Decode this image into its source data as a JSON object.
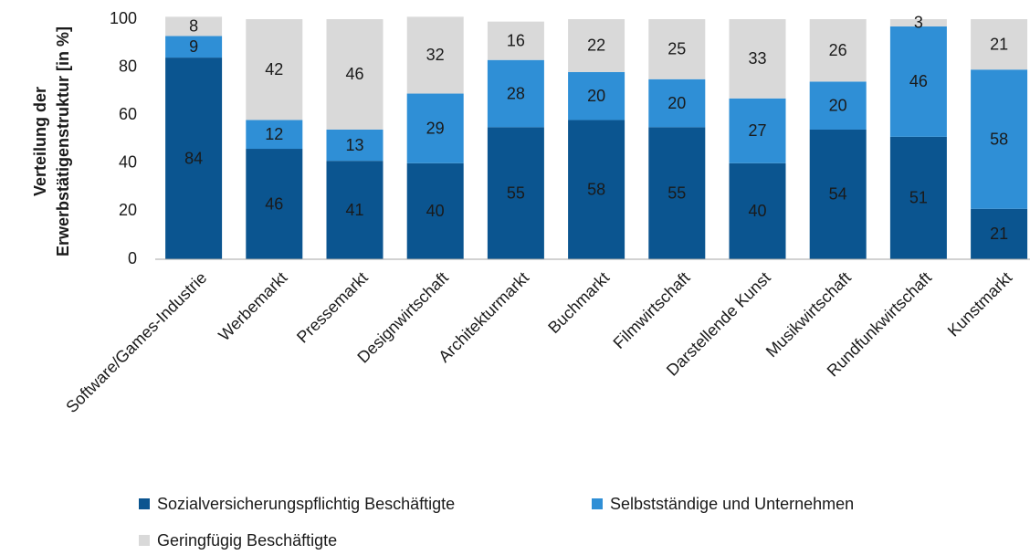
{
  "chart_data": {
    "type": "stacked_bar",
    "ylabel": [
      "Verteilung der",
      "Erwerbstätigenstruktur [in %]"
    ],
    "categories": [
      "Software/Games-Industrie",
      "Werbemarkt",
      "Pressemarkt",
      "Designwirtschaft",
      "Architekturmarkt",
      "Buchmarkt",
      "Filmwirtschaft",
      "Darstellende Kunst",
      "Musikwirtschaft",
      "Rundfunkwirtschaft",
      "Kunstmarkt"
    ],
    "series": [
      {
        "name": "Sozialversicherungspflichtig Beschäftigte",
        "color": "#0b5590",
        "label_color": "#ffffff",
        "values": [
          84,
          46,
          41,
          40,
          55,
          58,
          55,
          40,
          54,
          51,
          21
        ]
      },
      {
        "name": "Selbstständige und Unternehmen",
        "color": "#2f8fd6",
        "label_color": "#ffffff",
        "values": [
          9,
          12,
          13,
          29,
          28,
          20,
          20,
          27,
          20,
          46,
          58
        ]
      },
      {
        "name": "Geringfügig Beschäftigte",
        "color": "#d9d9d9",
        "label_color": "#1a1a1a",
        "values": [
          8,
          42,
          46,
          32,
          16,
          22,
          25,
          33,
          26,
          3,
          21
        ]
      }
    ],
    "ylim": [
      0,
      100
    ],
    "yticks": [
      0,
      20,
      40,
      60,
      80,
      100
    ]
  }
}
